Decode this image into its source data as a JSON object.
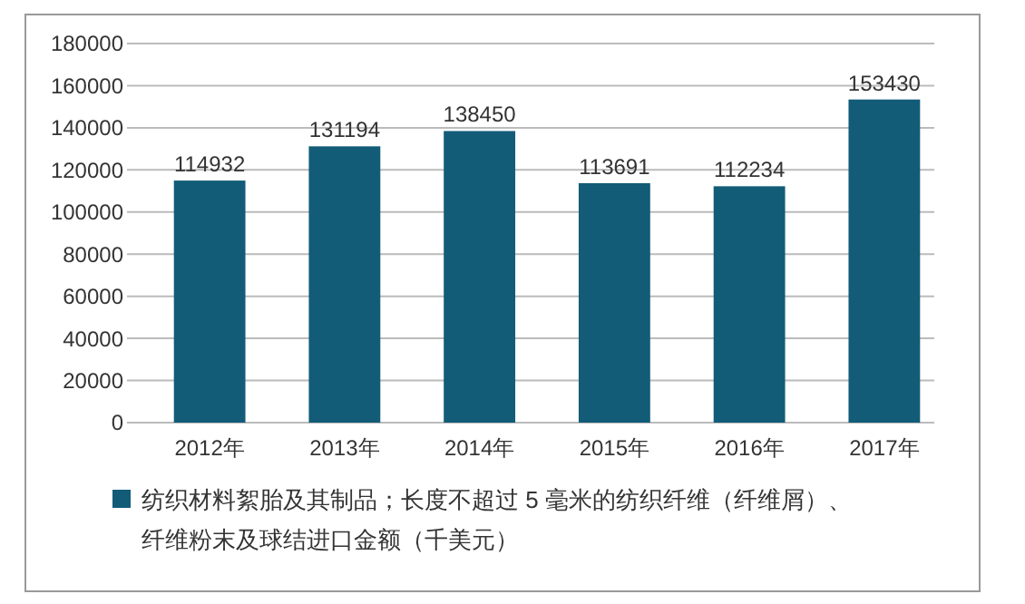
{
  "chart_data": {
    "type": "bar",
    "categories": [
      "2012年",
      "2013年",
      "2014年",
      "2015年",
      "2016年",
      "2017年"
    ],
    "series": [
      {
        "name": "纺织材料絮胎及其制品；长度不超过 5 毫米的纺织纤维（纤维屑）、纤维粉末及球结进口金额（千美元）",
        "color": "#125c78",
        "values": [
          114932,
          131194,
          138450,
          113691,
          112234,
          153430
        ]
      }
    ],
    "ylim": [
      0,
      180000
    ],
    "yticks": [
      0,
      20000,
      40000,
      60000,
      80000,
      100000,
      120000,
      140000,
      160000,
      180000
    ],
    "grid": "y",
    "data_labels": true,
    "legend": "bottom"
  }
}
